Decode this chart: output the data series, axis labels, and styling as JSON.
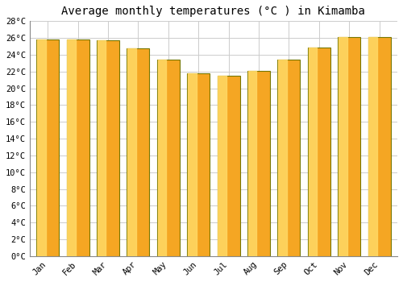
{
  "title": "Average monthly temperatures (°C ) in Kimamba",
  "months": [
    "Jan",
    "Feb",
    "Mar",
    "Apr",
    "May",
    "Jun",
    "Jul",
    "Aug",
    "Sep",
    "Oct",
    "Nov",
    "Dec"
  ],
  "values": [
    25.8,
    25.8,
    25.7,
    24.8,
    23.4,
    21.8,
    21.5,
    22.1,
    23.4,
    24.9,
    26.1,
    26.1
  ],
  "bar_color_main": "#F5A623",
  "bar_color_light": "#FFD966",
  "bar_color_dark": "#E8890A",
  "bar_edge_color": "#888800",
  "ylim": [
    0,
    28
  ],
  "yticks": [
    0,
    2,
    4,
    6,
    8,
    10,
    12,
    14,
    16,
    18,
    20,
    22,
    24,
    26,
    28
  ],
  "ytick_labels": [
    "0°C",
    "2°C",
    "4°C",
    "6°C",
    "8°C",
    "10°C",
    "12°C",
    "14°C",
    "16°C",
    "18°C",
    "20°C",
    "22°C",
    "24°C",
    "26°C",
    "28°C"
  ],
  "title_fontsize": 10,
  "tick_fontsize": 7.5,
  "background_color": "#FFFFFF",
  "plot_bg_color": "#FFFFFF",
  "grid_color": "#CCCCCC",
  "bar_width": 0.75
}
